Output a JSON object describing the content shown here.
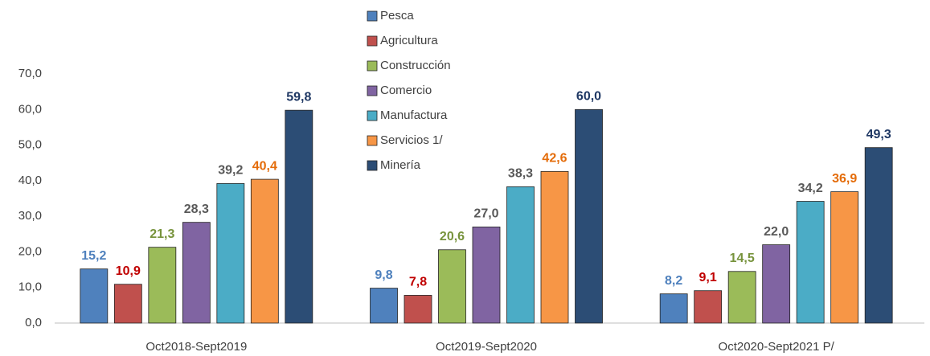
{
  "chart_data": {
    "type": "bar",
    "categories": [
      "Oct2018-Sept2019",
      "Oct2019-Sept2020",
      "Oct2020-Sept2021 P/"
    ],
    "series": [
      {
        "name": "Pesca",
        "color": "#4f81bd",
        "label_color": "#4f81bd",
        "values": [
          15.2,
          9.8,
          8.2
        ],
        "value_labels": [
          "15,2",
          "9,8",
          "8,2"
        ]
      },
      {
        "name": "Agricultura",
        "color": "#c0504d",
        "label_color": "#c00000",
        "values": [
          10.9,
          7.8,
          9.1
        ],
        "value_labels": [
          "10,9",
          "7,8",
          "9,1"
        ]
      },
      {
        "name": "Construcción",
        "color": "#9bbb59",
        "label_color": "#77933c",
        "values": [
          21.3,
          20.6,
          14.5
        ],
        "value_labels": [
          "21,3",
          "20,6",
          "14,5"
        ]
      },
      {
        "name": "Comercio",
        "color": "#8064a2",
        "label_color": "#595959",
        "values": [
          28.3,
          27.0,
          22.0
        ],
        "value_labels": [
          "28,3",
          "27,0",
          "22,0"
        ]
      },
      {
        "name": "Manufactura",
        "color": "#4bacc6",
        "label_color": "#595959",
        "values": [
          39.2,
          38.3,
          34.2
        ],
        "value_labels": [
          "39,2",
          "38,3",
          "34,2"
        ]
      },
      {
        "name": "Servicios 1/",
        "color": "#f79646",
        "label_color": "#e46c0a",
        "values": [
          40.4,
          42.6,
          36.9
        ],
        "value_labels": [
          "40,4",
          "42,6",
          "36,9"
        ]
      },
      {
        "name": "Minería",
        "color": "#2c4d75",
        "label_color": "#1f3864",
        "values": [
          59.8,
          60.0,
          49.3
        ],
        "value_labels": [
          "59,8",
          "60,0",
          "49,3"
        ]
      }
    ],
    "ylim": [
      0,
      70
    ],
    "yticks": [
      {
        "value": 0,
        "label": "0,0"
      },
      {
        "value": 10,
        "label": "10,0"
      },
      {
        "value": 20,
        "label": "20,0"
      },
      {
        "value": 30,
        "label": "30,0"
      },
      {
        "value": 40,
        "label": "40,0"
      },
      {
        "value": 50,
        "label": "50,0"
      },
      {
        "value": 60,
        "label": "60,0"
      },
      {
        "value": 70,
        "label": "70,0"
      }
    ],
    "grid": false
  }
}
